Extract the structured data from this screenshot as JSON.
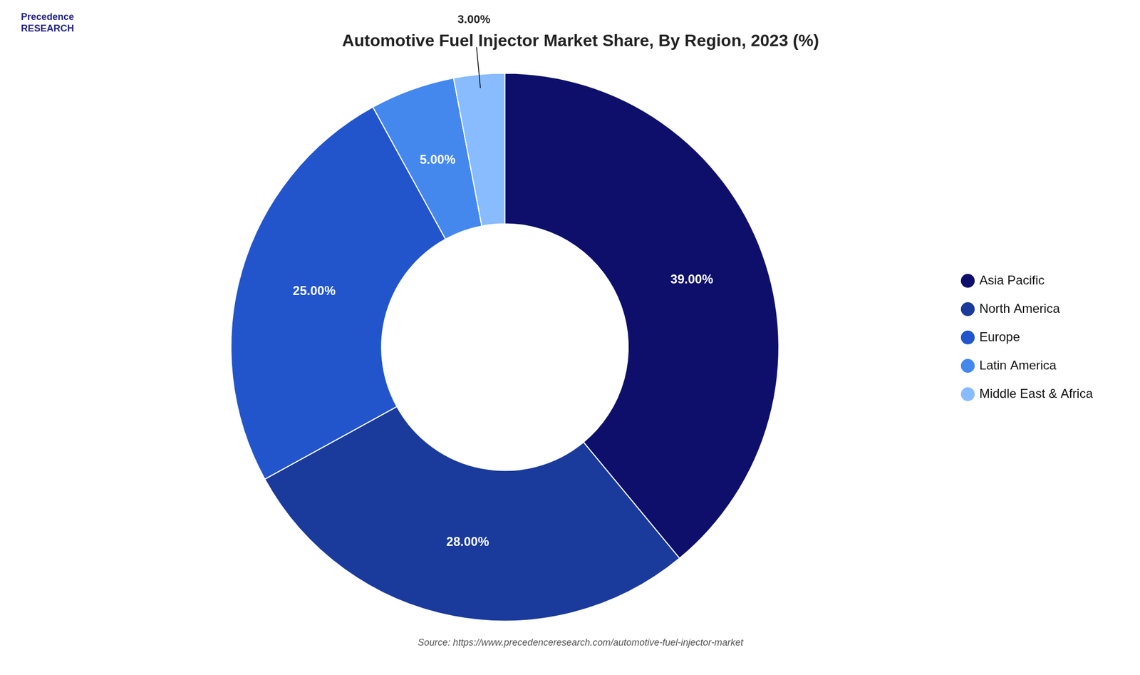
{
  "chart_data": {
    "type": "doughnut",
    "title": "Automotive Fuel Injector Market Share, By Region, 2023 (%)",
    "categories": [
      "Asia Pacific",
      "North America",
      "Europe",
      "Latin America",
      "Middle East & Africa"
    ],
    "values": [
      39.0,
      28.0,
      25.0,
      5.0,
      3.0
    ],
    "value_labels": [
      "39.00%",
      "28.00%",
      "25.00%",
      "5.00%",
      "3.00%"
    ],
    "colors": [
      "#0d0f6b",
      "#1a3a9c",
      "#2255cc",
      "#4488ee",
      "#88bbff"
    ],
    "data_labels": true,
    "legend": "right",
    "annotations": [
      "Precedence\nRESEARCH",
      "Source: https://www.precedenceresearch.com/automotive-fuel-injector-market"
    ]
  }
}
